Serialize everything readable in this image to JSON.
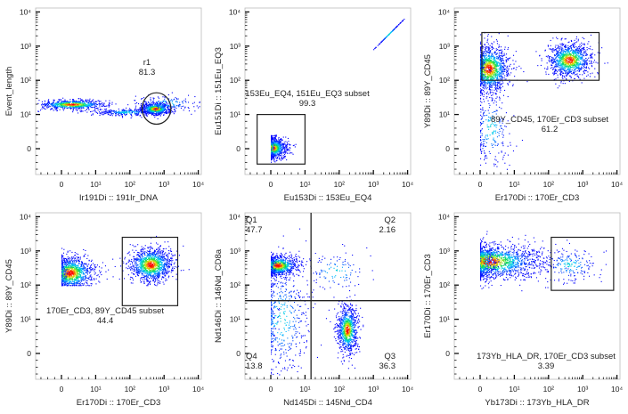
{
  "chart_data": [
    {
      "type": "scatter",
      "xlabel": "Ir191Di :: 191Ir_DNA",
      "ylabel": "Event_length",
      "x_ticks": [
        "0",
        "10¹",
        "10²",
        "10³",
        "10⁴"
      ],
      "y_ticks": [
        "0",
        "10¹",
        "10²",
        "10³",
        "10⁴"
      ],
      "populations": [
        {
          "x": 3,
          "y": 20,
          "sx": 0.5,
          "sy": 0.07,
          "n": 700
        },
        {
          "x": 80,
          "y": 12,
          "sx": 0.45,
          "sy": 0.05,
          "n": 300
        },
        {
          "x": 550,
          "y": 15,
          "sx": 0.22,
          "sy": 0.09,
          "n": 700
        },
        {
          "x": 1200,
          "y": 22,
          "sx": 0.5,
          "sy": 0.12,
          "n": 150
        }
      ],
      "gates": [
        {
          "shape": "ellipse",
          "name": "r1",
          "value": "81.3",
          "cx": 600,
          "cy": 15,
          "rx_decades": 0.42,
          "ry_decades": 0.46
        }
      ]
    },
    {
      "type": "scatter",
      "xlabel": "Eu153Di :: 153Eu_EQ4",
      "ylabel": "Eu151Di :: 151Eu_EQ3",
      "x_ticks": [
        "0",
        "10¹",
        "10²",
        "10³",
        "10⁴"
      ],
      "y_ticks": [
        "0",
        "10¹",
        "10²",
        "10³",
        "10⁴"
      ],
      "populations": [
        {
          "x": 0.5,
          "y": 0.3,
          "sx": 0.2,
          "sy": 0.15,
          "n": 900,
          "clip_min": 0
        },
        {
          "x": 2800,
          "y": 2300,
          "sx": 0.05,
          "sy": 0.05,
          "n": 120,
          "diagonal": true
        }
      ],
      "gates": [
        {
          "shape": "rect",
          "name": "153Eu_EQ4, 151Eu_EQ3 subset",
          "value": "99.3",
          "x0": -4,
          "x1": 10,
          "y0": -4.5,
          "y1": 10
        }
      ]
    },
    {
      "type": "scatter",
      "xlabel": "Er170Di :: 170Er_CD3",
      "ylabel": "Y89Di :: 89Y_CD45",
      "x_ticks": [
        "0",
        "10¹",
        "10²",
        "10³",
        "10⁴"
      ],
      "y_ticks": [
        "0",
        "10¹",
        "10²",
        "10³",
        "10⁴"
      ],
      "populations": [
        {
          "x": 2.5,
          "y": 220,
          "sx": 0.3,
          "sy": 0.35,
          "n": 1300,
          "clip_min": 0
        },
        {
          "x": 400,
          "y": 400,
          "sx": 0.32,
          "sy": 0.25,
          "n": 1100
        },
        {
          "x": 3,
          "y": 6,
          "sx": 0.3,
          "sy": 0.6,
          "n": 250,
          "clip_min": 0
        }
      ],
      "gates": [
        {
          "shape": "rect",
          "name": "89Y_CD45, 170Er_CD3 subset",
          "value": "61.2",
          "x0": 0.5,
          "x1": 3000,
          "y0": 100,
          "y1": 2500
        }
      ]
    },
    {
      "type": "scatter",
      "xlabel": "Er170Di :: 170Er_CD3",
      "ylabel": "Y89Di :: 89Y_CD45",
      "x_ticks": [
        "0",
        "10¹",
        "10²",
        "10³",
        "10⁴"
      ],
      "y_ticks": [
        "0",
        "10¹",
        "10²",
        "10³",
        "10⁴"
      ],
      "populations": [
        {
          "x": 2.5,
          "y": 230,
          "sx": 0.35,
          "sy": 0.25,
          "n": 1200,
          "clip_min": 0,
          "y_min": 100
        },
        {
          "x": 400,
          "y": 400,
          "sx": 0.32,
          "sy": 0.25,
          "n": 1200,
          "y_min": 100
        }
      ],
      "gates": [
        {
          "shape": "rect",
          "name": "170Er_CD3, 89Y_CD45 subset",
          "value": "44.4",
          "x0": 60,
          "x1": 2500,
          "y0": 25,
          "y1": 2500
        }
      ]
    },
    {
      "type": "scatter",
      "xlabel": "Nd145Di :: 145Nd_CD4",
      "ylabel": "Nd146Di :: 146Nd_CD8a",
      "x_ticks": [
        "0",
        "10¹",
        "10²",
        "10³",
        "10⁴"
      ],
      "y_ticks": [
        "0",
        "10¹",
        "10²",
        "10³",
        "10⁴"
      ],
      "populations": [
        {
          "x": 2,
          "y": 380,
          "sx": 0.3,
          "sy": 0.15,
          "n": 900,
          "clip_min": 0
        },
        {
          "x": 170,
          "y": 7,
          "sx": 0.15,
          "sy": 0.35,
          "n": 900,
          "clip_min": 0
        },
        {
          "x": 3,
          "y": 10,
          "sx": 0.45,
          "sy": 0.9,
          "n": 500,
          "clip_min": 0
        },
        {
          "x": 80,
          "y": 250,
          "sx": 0.5,
          "sy": 0.3,
          "n": 120
        }
      ],
      "quadrant": {
        "x": 15,
        "y": 35
      },
      "gates": [
        {
          "shape": "quadrant",
          "name": "Q1",
          "value": "47.7"
        },
        {
          "shape": "quadrant",
          "name": "Q2",
          "value": "2.16"
        },
        {
          "shape": "quadrant",
          "name": "Q3",
          "value": "36.3"
        },
        {
          "shape": "quadrant",
          "name": "Q4",
          "value": "13.8"
        }
      ]
    },
    {
      "type": "scatter",
      "xlabel": "Yb173Di :: 173Yb_HLA_DR",
      "ylabel": "Er170Di :: 170Er_CD3",
      "x_ticks": [
        "0",
        "10¹",
        "10²",
        "10³",
        "10⁴"
      ],
      "y_ticks": [
        "0",
        "10¹",
        "10²",
        "10³",
        "10⁴"
      ],
      "populations": [
        {
          "x": 2,
          "y": 500,
          "sx": 0.8,
          "sy": 0.25,
          "n": 1800,
          "clip_min": 0,
          "y_min": 70
        },
        {
          "x": 400,
          "y": 400,
          "sx": 0.45,
          "sy": 0.25,
          "n": 200
        }
      ],
      "gates": [
        {
          "shape": "rect",
          "name": "173Yb_HLA_DR, 170Er_CD3 subset",
          "value": "3.39",
          "x0": 120,
          "x1": 8000,
          "y0": 70,
          "y1": 2500
        }
      ]
    }
  ],
  "colors": {
    "gate": "#222222",
    "density_low": "#0000ff",
    "density_high": "#ff0000"
  }
}
